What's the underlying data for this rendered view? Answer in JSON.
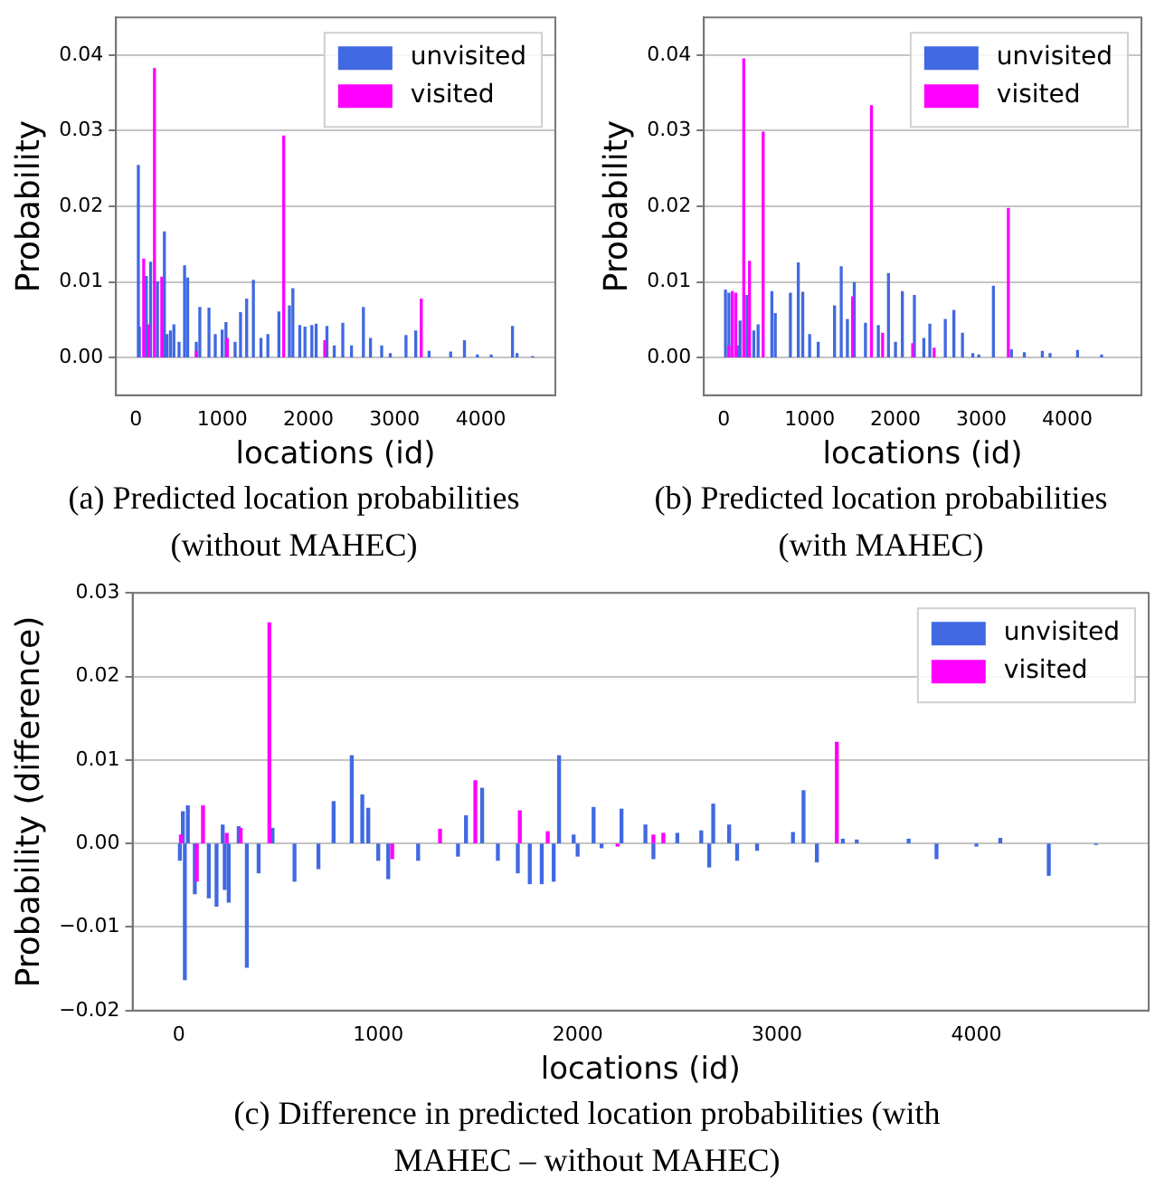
{
  "chart_data": [
    {
      "type": "bar",
      "title": "(a) Predicted location probabilities (without MAHEC)",
      "xlabel": "locations (id)",
      "ylabel": "Probability",
      "xlim": [
        -232,
        4864
      ],
      "ylim": [
        -0.005,
        0.045
      ],
      "xticks": [
        0,
        1000,
        2000,
        3000,
        4000
      ],
      "yticks": [
        {
          "value": 0,
          "label": "0.00"
        },
        {
          "value": 0.01,
          "label": "0.01"
        },
        {
          "value": 0.02,
          "label": "0.02"
        },
        {
          "value": 0.03,
          "label": "0.03"
        },
        {
          "value": 0.04,
          "label": "0.04"
        }
      ],
      "grid": "y",
      "legend": "top right",
      "series": [
        {
          "name": "unvisited",
          "color": "#4169e1",
          "x": [
            28,
            40,
            120,
            170,
            250,
            330,
            360,
            400,
            440,
            500,
            564,
            600,
            700,
            741,
            847,
            920,
            1000,
            1044,
            1150,
            1213,
            1284,
            1362,
            1450,
            1530,
            1658,
            1780,
            1820,
            1900,
            1960,
            2040,
            2090,
            2215,
            2300,
            2399,
            2500,
            2638,
            2720,
            2850,
            2950,
            3132,
            3245,
            3400,
            3650,
            3810,
            3960,
            4120,
            4367,
            4420,
            4600
          ],
          "values": [
            0.0254,
            0.004,
            0.0107,
            0.0126,
            0.01,
            0.0166,
            0.003,
            0.0035,
            0.0043,
            0.002,
            0.0121,
            0.0105,
            0.002,
            0.0066,
            0.0065,
            0.003,
            0.0036,
            0.0046,
            0.002,
            0.0059,
            0.0077,
            0.0102,
            0.0025,
            0.003,
            0.006,
            0.0068,
            0.0091,
            0.0042,
            0.004,
            0.0042,
            0.0044,
            0.0041,
            0.0015,
            0.0045,
            0.0015,
            0.0066,
            0.0025,
            0.0015,
            0.0005,
            0.0029,
            0.0035,
            0.0008,
            0.0007,
            0.0022,
            0.0003,
            0.0003,
            0.0041,
            0.0005,
            0.0001
          ]
        },
        {
          "name": "visited",
          "color": "#ff00ff",
          "x": [
            90,
            150,
            215,
            300,
            700,
            1060,
            1714,
            2190,
            3309
          ],
          "values": [
            0.013,
            0.0043,
            0.0382,
            0.0106,
            0.0008,
            0.0025,
            0.0293,
            0.0022,
            0.0077
          ]
        }
      ]
    },
    {
      "type": "bar",
      "title": "(b) Predicted location probabilities (with MAHEC)",
      "xlabel": "locations (id)",
      "ylabel": "Probability",
      "xlim": [
        -232,
        4864
      ],
      "ylim": [
        -0.005,
        0.045
      ],
      "xticks": [
        0,
        1000,
        2000,
        3000,
        4000
      ],
      "yticks": [
        {
          "value": 0,
          "label": "0.00"
        },
        {
          "value": 0.01,
          "label": "0.01"
        },
        {
          "value": 0.02,
          "label": "0.02"
        },
        {
          "value": 0.03,
          "label": "0.03"
        },
        {
          "value": 0.04,
          "label": "0.04"
        }
      ],
      "grid": "y",
      "legend": "top right",
      "series": [
        {
          "name": "unvisited",
          "color": "#4169e1",
          "x": [
            20,
            60,
            170,
            190,
            270,
            350,
            400,
            560,
            600,
            776,
            868,
            920,
            1000,
            1100,
            1290,
            1368,
            1440,
            1520,
            1650,
            1800,
            1918,
            2000,
            2080,
            2220,
            2330,
            2400,
            2580,
            2680,
            2780,
            2900,
            2970,
            3140,
            3350,
            3500,
            3710,
            3800,
            4120,
            4400
          ],
          "values": [
            0.0089,
            0.0085,
            0.0015,
            0.0048,
            0.0082,
            0.0035,
            0.0043,
            0.0087,
            0.0058,
            0.0085,
            0.0125,
            0.0086,
            0.003,
            0.002,
            0.0068,
            0.012,
            0.005,
            0.0099,
            0.0045,
            0.0042,
            0.0111,
            0.002,
            0.0087,
            0.0082,
            0.0025,
            0.0044,
            0.005,
            0.0062,
            0.0032,
            0.0005,
            0.0003,
            0.0094,
            0.001,
            0.0006,
            0.0008,
            0.0005,
            0.0009,
            0.0003
          ]
        },
        {
          "name": "visited",
          "color": "#ff00ff",
          "x": [
            60,
            100,
            140,
            233,
            300,
            459,
            1500,
            1720,
            1850,
            2200,
            2450,
            3314
          ],
          "values": [
            0.0015,
            0.0087,
            0.0085,
            0.0395,
            0.0127,
            0.0298,
            0.008,
            0.0333,
            0.0032,
            0.0018,
            0.0012,
            0.0197
          ]
        }
      ]
    },
    {
      "type": "bar",
      "title": "(c) Difference in predicted location probabilities (with MAHEC – without MAHEC)",
      "xlabel": "locations (id)",
      "ylabel": "Probability (difference)",
      "xlim": [
        -232,
        4864
      ],
      "ylim": [
        -0.02,
        0.03
      ],
      "xticks": [
        0,
        1000,
        2000,
        3000,
        4000
      ],
      "yticks": [
        {
          "value": -0.02,
          "label": "−0.02"
        },
        {
          "value": -0.01,
          "label": "−0.01"
        },
        {
          "value": 0,
          "label": "0.00"
        },
        {
          "value": 0.01,
          "label": "0.01"
        },
        {
          "value": 0.02,
          "label": "0.02"
        },
        {
          "value": 0.03,
          "label": "0.03"
        }
      ],
      "grid": "y",
      "legend": "top right",
      "series": [
        {
          "name": "unvisited",
          "color": "#4169e1",
          "x": [
            5,
            20,
            30,
            45,
            80,
            150,
            189,
            220,
            230,
            250,
            300,
            341,
            400,
            470,
            580,
            700,
            776,
            867,
            920,
            950,
            1000,
            1050,
            1200,
            1400,
            1440,
            1521,
            1600,
            1700,
            1760,
            1820,
            1880,
            1907,
            1980,
            2000,
            2080,
            2120,
            2220,
            2340,
            2380,
            2500,
            2620,
            2660,
            2680,
            2760,
            2800,
            2900,
            3080,
            3133,
            3200,
            3330,
            3400,
            3660,
            3800,
            4000,
            4120,
            4363,
            4600
          ],
          "values": [
            -0.002,
            0.0038,
            -0.0163,
            0.0045,
            -0.006,
            -0.0065,
            -0.0075,
            0.0022,
            -0.0055,
            -0.007,
            0.002,
            -0.0148,
            -0.0035,
            0.0018,
            -0.0045,
            -0.003,
            0.005,
            0.0105,
            0.0058,
            0.0042,
            -0.002,
            -0.0042,
            -0.002,
            -0.0015,
            0.0033,
            0.0066,
            -0.002,
            -0.0035,
            -0.0048,
            -0.0048,
            -0.0045,
            0.0105,
            0.001,
            -0.0015,
            0.0043,
            -0.0005,
            0.0041,
            0.0022,
            -0.0018,
            0.0012,
            0.0015,
            -0.0028,
            0.0047,
            0.0022,
            -0.002,
            -0.0008,
            0.0013,
            0.0063,
            -0.0022,
            0.0005,
            0.0004,
            0.0005,
            -0.0018,
            -0.0003,
            0.0006,
            -0.0038,
            -0.0001
          ]
        },
        {
          "name": "visited",
          "color": "#ff00ff",
          "x": [
            10,
            90,
            121,
            240,
            310,
            454,
            1070,
            1310,
            1487,
            1710,
            1850,
            2200,
            2380,
            2430,
            3300
          ],
          "values": [
            0.001,
            -0.0045,
            0.0045,
            0.0012,
            0.0018,
            0.0264,
            -0.0018,
            0.0017,
            0.0075,
            0.0039,
            0.0014,
            -0.0003,
            0.001,
            0.0012,
            0.0121
          ]
        }
      ]
    }
  ]
}
